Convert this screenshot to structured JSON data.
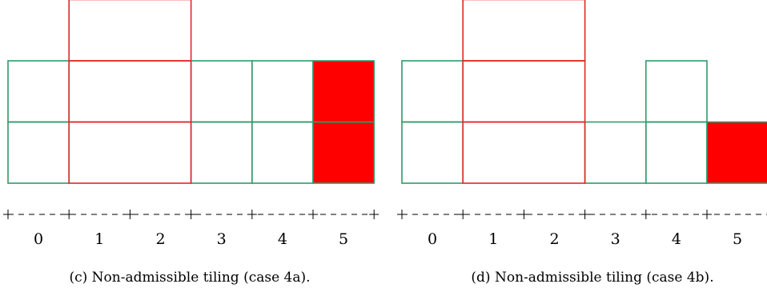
{
  "colors": {
    "green": "#2e9a6a",
    "red": "#e32626",
    "fill_red": "#ff0000",
    "axis": "#000000"
  },
  "panels": [
    {
      "id": "c",
      "caption": "(c) Non-admissible tiling (case 4a).",
      "tick_labels": [
        "0",
        "1",
        "2",
        "3",
        "4",
        "5"
      ],
      "tiles": [
        {
          "x": 0,
          "w": 1,
          "row": 0,
          "color": "green",
          "filled": false
        },
        {
          "x": 0,
          "w": 1,
          "row": 1,
          "color": "green",
          "filled": false
        },
        {
          "x": 1,
          "w": 2,
          "row": 0,
          "color": "red",
          "filled": false
        },
        {
          "x": 1,
          "w": 2,
          "row": 1,
          "color": "red",
          "filled": false
        },
        {
          "x": 1,
          "w": 2,
          "row": 2,
          "color": "red",
          "filled": false
        },
        {
          "x": 3,
          "w": 1,
          "row": 0,
          "color": "green",
          "filled": false
        },
        {
          "x": 3,
          "w": 1,
          "row": 1,
          "color": "green",
          "filled": false
        },
        {
          "x": 4,
          "w": 1,
          "row": 0,
          "color": "green",
          "filled": false
        },
        {
          "x": 4,
          "w": 1,
          "row": 1,
          "color": "green",
          "filled": false
        },
        {
          "x": 5,
          "w": 1,
          "row": 0,
          "color": "green",
          "filled": true
        },
        {
          "x": 5,
          "w": 1,
          "row": 1,
          "color": "green",
          "filled": true
        }
      ]
    },
    {
      "id": "d",
      "caption": "(d) Non-admissible tiling (case 4b).",
      "tick_labels": [
        "0",
        "1",
        "2",
        "3",
        "4",
        "5"
      ],
      "tiles": [
        {
          "x": 0,
          "w": 1,
          "row": 0,
          "color": "green",
          "filled": false
        },
        {
          "x": 0,
          "w": 1,
          "row": 1,
          "color": "green",
          "filled": false
        },
        {
          "x": 1,
          "w": 2,
          "row": 0,
          "color": "red",
          "filled": false
        },
        {
          "x": 1,
          "w": 2,
          "row": 1,
          "color": "red",
          "filled": false
        },
        {
          "x": 1,
          "w": 2,
          "row": 2,
          "color": "red",
          "filled": false
        },
        {
          "x": 3,
          "w": 1,
          "row": 0,
          "color": "green",
          "filled": false
        },
        {
          "x": 4,
          "w": 1,
          "row": 0,
          "color": "green",
          "filled": false
        },
        {
          "x": 4,
          "w": 1,
          "row": 1,
          "color": "green",
          "filled": false
        },
        {
          "x": 5,
          "w": 1,
          "row": 0,
          "color": "green",
          "filled": true
        }
      ]
    }
  ]
}
